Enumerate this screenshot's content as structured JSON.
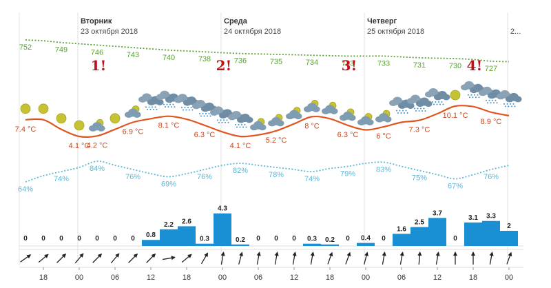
{
  "chart_data": {
    "type": "line",
    "days": [
      {
        "name": "Вторник",
        "date": "23 октября 2018"
      },
      {
        "name": "Среда",
        "date": "24 октября 2018"
      },
      {
        "name": "Четверг",
        "date": "25 октября 2018"
      },
      {
        "name": "",
        "date": "2..."
      }
    ],
    "x_hours": [
      "15",
      "18",
      "21",
      "00",
      "03",
      "06",
      "09",
      "12",
      "15",
      "18",
      "21",
      "00",
      "03",
      "06",
      "09",
      "12",
      "15",
      "18",
      "21",
      "00",
      "03",
      "06",
      "09",
      "12",
      "15",
      "18",
      "21",
      "00"
    ],
    "x_tick_labels": [
      "18",
      "00",
      "06",
      "12",
      "18",
      "00",
      "06",
      "12",
      "18",
      "00",
      "06",
      "12",
      "18",
      "00"
    ],
    "pressure": {
      "values": [
        752,
        751,
        749,
        747.5,
        746,
        744.5,
        743,
        741.5,
        740,
        739,
        738,
        737,
        736,
        735.5,
        735,
        734.5,
        734,
        733.5,
        733,
        733,
        733,
        732,
        731,
        730.5,
        730,
        729,
        727,
        726.5
      ],
      "labels": [
        {
          "index": 0,
          "text": "752"
        },
        {
          "index": 2,
          "text": "749"
        },
        {
          "index": 4,
          "text": "746"
        },
        {
          "index": 6,
          "text": "743"
        },
        {
          "index": 8,
          "text": "740"
        },
        {
          "index": 10,
          "text": "738"
        },
        {
          "index": 12,
          "text": "736"
        },
        {
          "index": 14,
          "text": "735"
        },
        {
          "index": 16,
          "text": "734"
        },
        {
          "index": 18,
          "text": "733"
        },
        {
          "index": 20,
          "text": "733"
        },
        {
          "index": 22,
          "text": "731"
        },
        {
          "index": 24,
          "text": "730"
        },
        {
          "index": 26,
          "text": "727"
        }
      ]
    },
    "temperature": {
      "values": [
        7.4,
        7.4,
        5.5,
        4.1,
        4.2,
        5.5,
        6.9,
        7.6,
        8.1,
        7.5,
        6.3,
        5.0,
        4.1,
        4.4,
        5.2,
        6.6,
        8.0,
        7.6,
        6.3,
        5.4,
        6.0,
        6.9,
        7.3,
        8.6,
        10.1,
        10.0,
        8.9,
        8.2
      ],
      "labels": [
        {
          "index": 0,
          "text": "7.4 °C"
        },
        {
          "index": 3,
          "text": "4.1 °C"
        },
        {
          "index": 4,
          "text": "4.2 °C"
        },
        {
          "index": 6,
          "text": "6.9 °C"
        },
        {
          "index": 8,
          "text": "8.1 °C"
        },
        {
          "index": 10,
          "text": "6.3 °C"
        },
        {
          "index": 12,
          "text": "4.1 °C"
        },
        {
          "index": 14,
          "text": "5.2 °C"
        },
        {
          "index": 16,
          "text": "8 °C"
        },
        {
          "index": 18,
          "text": "6.3 °C"
        },
        {
          "index": 20,
          "text": "6 °C"
        },
        {
          "index": 22,
          "text": "7.3 °C"
        },
        {
          "index": 24,
          "text": "10.1 °C"
        },
        {
          "index": 26,
          "text": "8.9 °C"
        }
      ]
    },
    "humidity": {
      "values": [
        64,
        70,
        74,
        78,
        84,
        80,
        76,
        72,
        69,
        72,
        76,
        80,
        82,
        80,
        78,
        76,
        74,
        77,
        79,
        82,
        83,
        79,
        75,
        71,
        67,
        71,
        76,
        80
      ],
      "labels": [
        {
          "index": 0,
          "text": "64%"
        },
        {
          "index": 2,
          "text": "74%"
        },
        {
          "index": 4,
          "text": "84%"
        },
        {
          "index": 6,
          "text": "76%"
        },
        {
          "index": 8,
          "text": "69%"
        },
        {
          "index": 10,
          "text": "76%"
        },
        {
          "index": 12,
          "text": "82%"
        },
        {
          "index": 14,
          "text": "78%"
        },
        {
          "index": 16,
          "text": "74%"
        },
        {
          "index": 18,
          "text": "79%"
        },
        {
          "index": 20,
          "text": "83%"
        },
        {
          "index": 22,
          "text": "75%"
        },
        {
          "index": 24,
          "text": "67%"
        },
        {
          "index": 26,
          "text": "76%"
        }
      ]
    },
    "precipitation": {
      "values": [
        0,
        0,
        0,
        0,
        0,
        0,
        0,
        0.8,
        2.2,
        2.6,
        0.3,
        4.3,
        0.2,
        0,
        0,
        0,
        0.3,
        0.2,
        0,
        0.4,
        0,
        1.6,
        2.5,
        3.7,
        0,
        3.1,
        3.3,
        2
      ],
      "labels": [
        "0",
        "0",
        "0",
        "0",
        "0",
        "0",
        "0",
        "0.8",
        "2.2",
        "2.6",
        "0.3",
        "4.3",
        "0.2",
        "0",
        "0",
        "0",
        "0.3",
        "0.2",
        "0",
        "0.4",
        "0",
        "1.6",
        "2.5",
        "3.7",
        "0",
        "3.1",
        "3.3",
        "2"
      ]
    },
    "weather_icons": [
      "sun",
      "sun",
      "sun",
      "sun",
      "sun-cloud",
      "sun",
      "sun-cloud",
      "cloud-rain",
      "cloud-rain",
      "cloud-rain",
      "cloud-rain",
      "cloud-rain",
      "cloud-rain",
      "sun-cloud",
      "sun-cloud",
      "sun-cloud",
      "sun-cloud",
      "sun-cloud",
      "sun-cloud",
      "sun-cloud",
      "sun-cloud",
      "cloud-rain",
      "cloud-rain",
      "cloud-rain",
      "sun",
      "cloud-rain",
      "cloud-rain",
      "cloud-rain"
    ],
    "wind_directions_deg": [
      235,
      230,
      225,
      220,
      225,
      220,
      225,
      225,
      260,
      230,
      210,
      190,
      195,
      190,
      190,
      190,
      190,
      200,
      200,
      195,
      190,
      190,
      185,
      190,
      180,
      180,
      190,
      200
    ],
    "annotations": [
      {
        "index": 4,
        "text": "1!"
      },
      {
        "index": 11,
        "text": "2!"
      },
      {
        "index": 18,
        "text": "3!"
      },
      {
        "index": 25,
        "text": "4!"
      }
    ],
    "colors": {
      "pressure": "#5aa232",
      "temperature": "#e0551e",
      "humidity": "#5ab7d6",
      "precipitation": "#1b8fd4",
      "annotation": "#c0101a"
    }
  }
}
